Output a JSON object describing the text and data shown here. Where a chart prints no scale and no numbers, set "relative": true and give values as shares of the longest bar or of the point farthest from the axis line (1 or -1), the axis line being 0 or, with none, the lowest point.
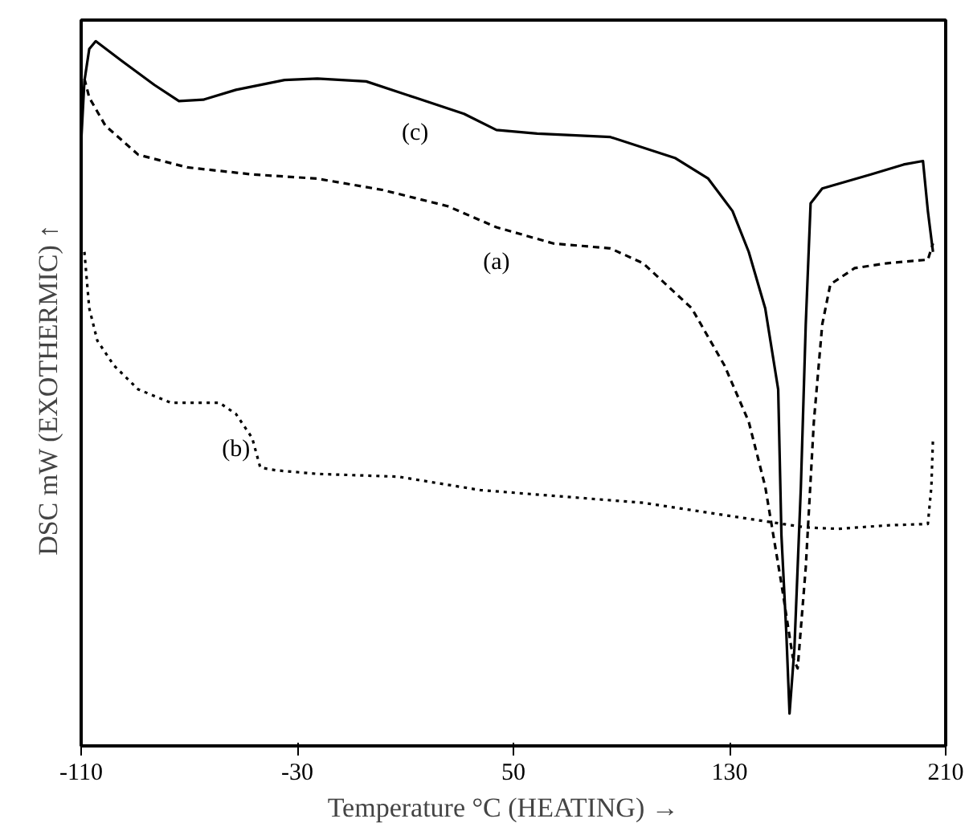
{
  "chart_data": {
    "type": "line",
    "relative": true,
    "xlabel": "Temperature °C  (HEATING)   →",
    "ylabel": "DSC mW  (EXOTHERMIC)  ↑",
    "xlim": [
      -110,
      210
    ],
    "xticks": [
      -110,
      -30,
      50,
      130,
      210
    ],
    "tick_labels": "x",
    "grid": false,
    "marker": "none",
    "series": [
      {
        "name": "(a)",
        "color": "#000000",
        "line_style": "dashed",
        "x": [
          -108.8,
          -107,
          -101,
          -88.9,
          -70.8,
          -46.7,
          -22.6,
          1.5,
          25.6,
          43.7,
          64.8,
          85.9,
          98,
          116,
          128.1,
          137.1,
          143.2,
          149.2,
          153.4,
          155.2,
          158.2,
          161.2,
          164.3,
          167.3,
          176.3,
          188.4,
          203.4,
          205.3
        ],
        "values": [
          0.947,
          0.92,
          0.88,
          0.839,
          0.821,
          0.811,
          0.805,
          0.789,
          0.766,
          0.736,
          0.713,
          0.706,
          0.685,
          0.621,
          0.54,
          0.46,
          0.368,
          0.23,
          0.126,
          0.11,
          0.253,
          0.46,
          0.598,
          0.655,
          0.678,
          0.685,
          0.69,
          0.713
        ]
      },
      {
        "name": "(b)",
        "color": "#000000",
        "line_style": "dotted",
        "x": [
          -108.8,
          -107,
          -104,
          -97.9,
          -88.9,
          -76.8,
          -58.8,
          -52.7,
          -46.7,
          -43.7,
          -37.7,
          -22.6,
          7.5,
          37.7,
          98,
          146.2,
          158.2,
          170.3,
          188.4,
          203.4,
          204.7,
          205.3
        ],
        "values": [
          0.701,
          0.621,
          0.575,
          0.54,
          0.506,
          0.487,
          0.487,
          0.471,
          0.437,
          0.395,
          0.391,
          0.386,
          0.382,
          0.363,
          0.345,
          0.317,
          0.31,
          0.308,
          0.313,
          0.315,
          0.368,
          0.437
        ]
      },
      {
        "name": "(c)",
        "color": "#000000",
        "line_style": "solid",
        "x": [
          -110,
          -108.8,
          -107,
          -104.6,
          -94.9,
          -82.9,
          -73.8,
          -64.8,
          -52.7,
          -34.7,
          -22.6,
          -4.5,
          13.6,
          31.7,
          43.7,
          58.8,
          85.9,
          110,
          122.1,
          131.1,
          137.1,
          143.2,
          148,
          149.2,
          151,
          152.2,
          154,
          156.4,
          158.2,
          160,
          164.3,
          182.3,
          194.4,
          201.6,
          203.4,
          205.3
        ],
        "values": [
          0.857,
          0.943,
          0.989,
          1.0,
          0.972,
          0.938,
          0.915,
          0.917,
          0.931,
          0.945,
          0.947,
          0.943,
          0.92,
          0.897,
          0.874,
          0.869,
          0.864,
          0.834,
          0.805,
          0.759,
          0.701,
          0.621,
          0.506,
          0.299,
          0.161,
          0.046,
          0.138,
          0.368,
          0.598,
          0.77,
          0.791,
          0.811,
          0.825,
          0.83,
          0.759,
          0.701
        ]
      }
    ]
  }
}
